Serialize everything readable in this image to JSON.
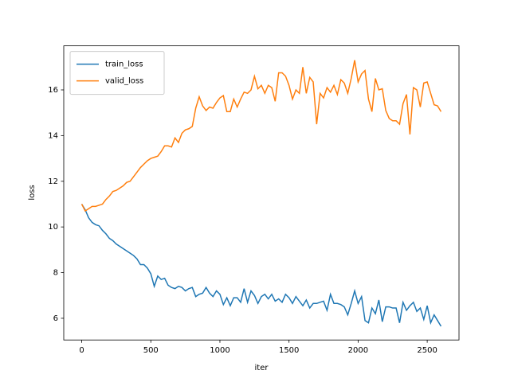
{
  "chart_data": {
    "type": "line",
    "xlabel": "iter",
    "ylabel": "loss",
    "x": [
      0,
      25,
      50,
      75,
      100,
      125,
      150,
      175,
      200,
      225,
      250,
      275,
      300,
      325,
      350,
      375,
      400,
      425,
      450,
      475,
      500,
      525,
      550,
      575,
      600,
      625,
      650,
      675,
      700,
      725,
      750,
      775,
      800,
      825,
      850,
      875,
      900,
      925,
      950,
      975,
      1000,
      1025,
      1050,
      1075,
      1100,
      1125,
      1150,
      1175,
      1200,
      1225,
      1250,
      1275,
      1300,
      1325,
      1350,
      1375,
      1400,
      1425,
      1450,
      1475,
      1500,
      1525,
      1550,
      1575,
      1600,
      1625,
      1650,
      1675,
      1700,
      1725,
      1750,
      1775,
      1800,
      1825,
      1850,
      1875,
      1900,
      1925,
      1950,
      1975,
      2000,
      2025,
      2050,
      2075,
      2100,
      2125,
      2150,
      2175,
      2200,
      2225,
      2250,
      2275,
      2300,
      2325,
      2350,
      2375,
      2400,
      2425,
      2450,
      2475,
      2500,
      2525,
      2550,
      2575,
      2600
    ],
    "series": [
      {
        "name": "train_loss",
        "color": "#1f77b4",
        "values": [
          11.0,
          10.75,
          10.4,
          10.2,
          10.1,
          10.05,
          9.85,
          9.7,
          9.5,
          9.4,
          9.25,
          9.15,
          9.05,
          8.95,
          8.85,
          8.75,
          8.6,
          8.35,
          8.35,
          8.2,
          7.95,
          7.4,
          7.85,
          7.7,
          7.75,
          7.45,
          7.35,
          7.3,
          7.4,
          7.35,
          7.2,
          7.3,
          7.35,
          6.95,
          7.05,
          7.1,
          7.35,
          7.1,
          6.95,
          7.2,
          7.05,
          6.6,
          6.9,
          6.55,
          6.9,
          6.9,
          6.7,
          7.3,
          6.7,
          7.2,
          7.0,
          6.65,
          6.95,
          7.05,
          6.85,
          7.05,
          6.75,
          6.85,
          6.7,
          7.05,
          6.9,
          6.65,
          6.95,
          6.75,
          6.55,
          6.8,
          6.45,
          6.65,
          6.65,
          6.7,
          6.75,
          6.35,
          7.05,
          6.65,
          6.65,
          6.6,
          6.5,
          6.15,
          6.65,
          7.2,
          6.65,
          6.95,
          5.9,
          5.8,
          6.45,
          6.2,
          6.8,
          5.85,
          6.5,
          6.5,
          6.45,
          6.45,
          5.8,
          6.7,
          6.35,
          6.55,
          6.7,
          6.3,
          6.45,
          5.95,
          6.55,
          5.8,
          6.15,
          5.9,
          5.65
        ]
      },
      {
        "name": "valid_loss",
        "color": "#ff7f0e",
        "values": [
          11.0,
          10.7,
          10.8,
          10.9,
          10.9,
          10.95,
          11.0,
          11.2,
          11.35,
          11.55,
          11.6,
          11.7,
          11.8,
          11.95,
          12.0,
          12.2,
          12.4,
          12.6,
          12.75,
          12.9,
          13.0,
          13.05,
          13.1,
          13.3,
          13.55,
          13.55,
          13.5,
          13.9,
          13.7,
          14.1,
          14.25,
          14.3,
          14.4,
          15.2,
          15.7,
          15.3,
          15.1,
          15.25,
          15.2,
          15.45,
          15.65,
          15.75,
          15.05,
          15.05,
          15.6,
          15.25,
          15.6,
          15.9,
          15.85,
          16.0,
          16.6,
          16.05,
          16.2,
          15.85,
          16.2,
          16.1,
          15.5,
          16.75,
          16.75,
          16.6,
          16.2,
          15.6,
          16.0,
          15.85,
          17.0,
          15.85,
          16.55,
          16.35,
          14.5,
          15.85,
          15.65,
          16.1,
          15.9,
          16.2,
          15.8,
          16.45,
          16.3,
          15.85,
          16.5,
          17.3,
          16.35,
          16.7,
          16.85,
          15.6,
          15.05,
          16.5,
          16.0,
          16.05,
          15.1,
          14.75,
          14.65,
          14.65,
          14.5,
          15.4,
          15.8,
          14.05,
          16.1,
          16.0,
          15.25,
          16.3,
          16.35,
          15.85,
          15.35,
          15.3,
          15.05
        ]
      }
    ],
    "xlim": [
      -130,
      2730
    ],
    "ylim": [
      5.05,
      17.93
    ],
    "xticks": [
      0,
      500,
      1000,
      1500,
      2000,
      2500
    ],
    "yticks": [
      6,
      8,
      10,
      12,
      14,
      16
    ],
    "legend": "upper left"
  }
}
